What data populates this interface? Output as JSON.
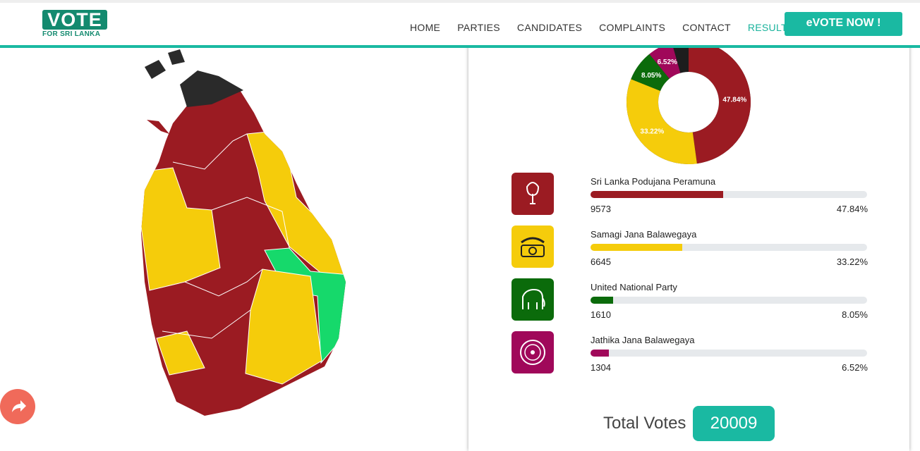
{
  "header": {
    "logo_title": "VOTE",
    "logo_subtitle": "FOR SRI LANKA",
    "nav": [
      "HOME",
      "PARTIES",
      "CANDIDATES",
      "COMPLAINTS",
      "CONTACT",
      "RESULTS"
    ],
    "cta": "eVOTE NOW !"
  },
  "results": {
    "parties": [
      {
        "name": "Sri Lanka Podujana Peramuna",
        "votes": 9573,
        "percent": 47.84,
        "percent_label": "47.84%",
        "color": "#9b1b22"
      },
      {
        "name": "Samagi Jana Balawegaya",
        "votes": 6645,
        "percent": 33.22,
        "percent_label": "33.22%",
        "color": "#f5cc0b"
      },
      {
        "name": "United National Party",
        "votes": 1610,
        "percent": 8.05,
        "percent_label": "8.05%",
        "color": "#0b6b0b"
      },
      {
        "name": "Jathika Jana Balawegaya",
        "votes": 1304,
        "percent": 6.52,
        "percent_label": "6.52%",
        "color": "#a0085a"
      }
    ],
    "total_label": "Total Votes",
    "total_votes": 20009
  }
}
